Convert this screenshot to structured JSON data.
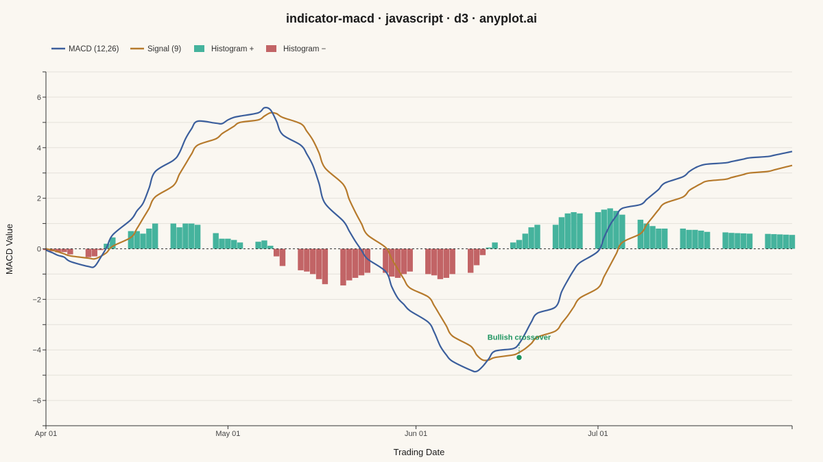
{
  "chart_data": {
    "type": "line",
    "title": "indicator-macd · javascript · d3 · anyplot.ai",
    "xlabel": "Trading Date",
    "ylabel": "MACD Value",
    "ylim": [
      -7,
      7
    ],
    "x_tick_labels": [
      "Apr 01",
      "May 01",
      "Jun 01",
      "Jul 01"
    ],
    "y_ticks": [
      6,
      4,
      2,
      0,
      -2,
      -4,
      -6
    ],
    "y_tick_labels": [
      "6",
      "4",
      "2",
      "0",
      "−2",
      "−4",
      "−6"
    ],
    "grid": true,
    "legend_position": "top-left",
    "x": [
      "2024-04-01",
      "2024-04-02",
      "2024-04-03",
      "2024-04-04",
      "2024-04-05",
      "2024-04-08",
      "2024-04-09",
      "2024-04-10",
      "2024-04-11",
      "2024-04-12",
      "2024-04-15",
      "2024-04-16",
      "2024-04-17",
      "2024-04-18",
      "2024-04-19",
      "2024-04-22",
      "2024-04-23",
      "2024-04-24",
      "2024-04-25",
      "2024-04-26",
      "2024-04-29",
      "2024-04-30",
      "2024-05-01",
      "2024-05-02",
      "2024-05-03",
      "2024-05-06",
      "2024-05-07",
      "2024-05-08",
      "2024-05-09",
      "2024-05-10",
      "2024-05-13",
      "2024-05-14",
      "2024-05-15",
      "2024-05-16",
      "2024-05-17",
      "2024-05-20",
      "2024-05-21",
      "2024-05-22",
      "2024-05-23",
      "2024-05-24",
      "2024-05-27",
      "2024-05-28",
      "2024-05-29",
      "2024-05-30",
      "2024-05-31",
      "2024-06-03",
      "2024-06-04",
      "2024-06-05",
      "2024-06-06",
      "2024-06-07",
      "2024-06-10",
      "2024-06-11",
      "2024-06-12",
      "2024-06-13",
      "2024-06-14",
      "2024-06-17",
      "2024-06-18",
      "2024-06-19",
      "2024-06-20",
      "2024-06-21",
      "2024-06-24",
      "2024-06-25",
      "2024-06-26",
      "2024-06-27",
      "2024-06-28",
      "2024-07-01",
      "2024-07-02",
      "2024-07-03",
      "2024-07-04",
      "2024-07-05",
      "2024-07-08",
      "2024-07-09",
      "2024-07-10",
      "2024-07-11",
      "2024-07-12",
      "2024-07-15",
      "2024-07-16",
      "2024-07-17",
      "2024-07-18",
      "2024-07-19",
      "2024-07-22",
      "2024-07-23",
      "2024-07-24",
      "2024-07-25",
      "2024-07-26",
      "2024-07-29",
      "2024-07-30",
      "2024-07-31",
      "2024-08-01",
      "2024-08-02"
    ],
    "series": [
      {
        "name": "MACD (12,26)",
        "type": "line",
        "color": "#3B5E9C",
        "values": [
          -0.05,
          -0.15,
          -0.26,
          -0.33,
          -0.5,
          -0.7,
          -0.7,
          -0.35,
          0.05,
          0.55,
          1.15,
          1.5,
          1.8,
          2.4,
          3.05,
          3.5,
          3.8,
          4.35,
          4.75,
          5.05,
          4.97,
          4.95,
          5.1,
          5.2,
          5.25,
          5.38,
          5.58,
          5.5,
          5.05,
          4.52,
          4.1,
          3.75,
          3.3,
          2.6,
          1.8,
          1.1,
          0.7,
          0.3,
          -0.05,
          -0.4,
          -0.9,
          -1.5,
          -1.95,
          -2.2,
          -2.45,
          -2.9,
          -3.3,
          -3.85,
          -4.2,
          -4.45,
          -4.8,
          -4.85,
          -4.65,
          -4.35,
          -4.05,
          -3.95,
          -3.75,
          -3.35,
          -2.9,
          -2.55,
          -2.3,
          -1.7,
          -1.25,
          -0.85,
          -0.55,
          -0.1,
          0.45,
          0.95,
          1.3,
          1.6,
          1.75,
          1.95,
          2.15,
          2.35,
          2.6,
          2.85,
          3.05,
          3.2,
          3.3,
          3.35,
          3.4,
          3.45,
          3.5,
          3.55,
          3.6,
          3.65,
          3.7,
          3.75,
          3.8,
          3.85
        ]
      },
      {
        "name": "Signal (9)",
        "type": "line",
        "color": "#B67A2C",
        "values": [
          0.0,
          -0.05,
          -0.12,
          -0.2,
          -0.28,
          -0.37,
          -0.4,
          -0.3,
          -0.15,
          0.1,
          0.45,
          0.8,
          1.2,
          1.6,
          2.05,
          2.5,
          2.95,
          3.35,
          3.75,
          4.1,
          4.35,
          4.55,
          4.7,
          4.85,
          5.0,
          5.1,
          5.25,
          5.38,
          5.35,
          5.2,
          4.95,
          4.65,
          4.3,
          3.8,
          3.2,
          2.55,
          1.95,
          1.45,
          1.0,
          0.55,
          0.05,
          -0.4,
          -0.8,
          -1.2,
          -1.55,
          -1.9,
          -2.25,
          -2.65,
          -3.05,
          -3.45,
          -3.85,
          -4.2,
          -4.4,
          -4.4,
          -4.3,
          -4.2,
          -4.1,
          -3.95,
          -3.75,
          -3.5,
          -3.25,
          -2.95,
          -2.65,
          -2.3,
          -1.95,
          -1.55,
          -1.1,
          -0.65,
          -0.2,
          0.25,
          0.6,
          0.95,
          1.25,
          1.55,
          1.8,
          2.05,
          2.3,
          2.45,
          2.58,
          2.68,
          2.75,
          2.82,
          2.88,
          2.94,
          3.0,
          3.06,
          3.12,
          3.18,
          3.24,
          3.3
        ]
      }
    ],
    "histogram": {
      "positive_name": "Histogram +",
      "negative_name": "Histogram −",
      "positive_color": "#45B39D",
      "negative_color": "#C26466",
      "values": [
        -0.05,
        -0.1,
        -0.14,
        -0.13,
        -0.22,
        -0.33,
        -0.3,
        -0.05,
        0.2,
        0.45,
        0.7,
        0.7,
        0.6,
        0.8,
        1.0,
        1.0,
        0.85,
        1.0,
        1.0,
        0.95,
        0.62,
        0.4,
        0.4,
        0.35,
        0.25,
        0.28,
        0.33,
        0.12,
        -0.3,
        -0.68,
        -0.85,
        -0.9,
        -1.0,
        -1.2,
        -1.4,
        -1.45,
        -1.25,
        -1.15,
        -1.05,
        -0.95,
        -0.95,
        -1.1,
        -1.15,
        -1.0,
        -0.9,
        -1.0,
        -1.05,
        -1.2,
        -1.15,
        -1.0,
        -0.95,
        -0.65,
        -0.25,
        0.05,
        0.25,
        0.25,
        0.35,
        0.6,
        0.85,
        0.95,
        0.95,
        1.25,
        1.4,
        1.45,
        1.4,
        1.45,
        1.55,
        1.6,
        1.5,
        1.35,
        1.15,
        1.0,
        0.9,
        0.8,
        0.8,
        0.8,
        0.75,
        0.75,
        0.72,
        0.67,
        0.65,
        0.63,
        0.62,
        0.61,
        0.6,
        0.59,
        0.58,
        0.57,
        0.56,
        0.55
      ]
    },
    "annotation": {
      "text": "Bullish crossover",
      "x": "2024-06-18",
      "y": -4.3,
      "color": "#1E9460"
    }
  }
}
